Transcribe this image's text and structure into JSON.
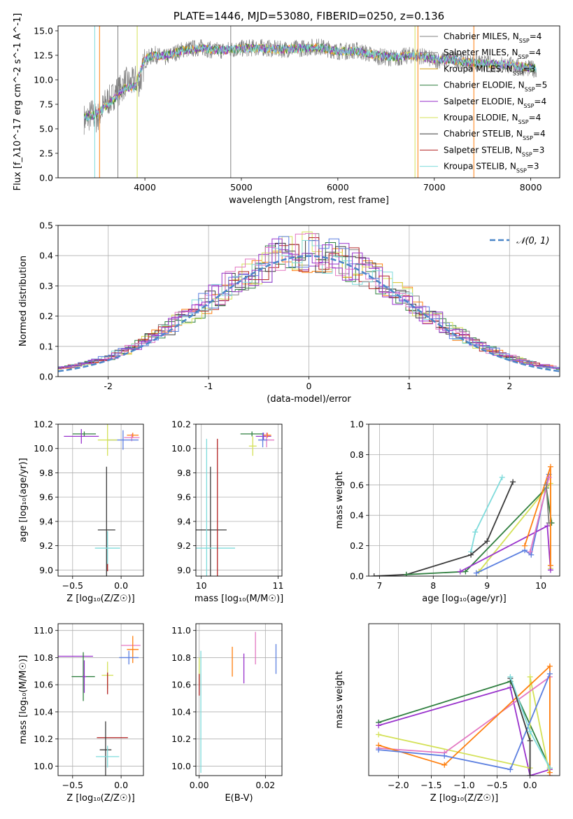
{
  "colors": {
    "Chabrier MILES": "#7f7f7f",
    "Salpeter MILES": "#7f7f7f",
    "Kroupa MILES": "#ff7f0e",
    "Chabrier ELODIE": "#2f7f3f",
    "Salpeter ELODIE": "#9932cc",
    "Kroupa ELODIE": "#d4e157",
    "Chabrier STELIB": "#3a3a3a",
    "Salpeter STELIB": "#b22222",
    "Kroupa STELIB": "#7fdbdb",
    "extra_pink": "#e377c2",
    "extra_blue": "#5b7fe0"
  },
  "chart_data": [
    {
      "id": "spectrum",
      "type": "line",
      "title": "PLATE=1446, MJD=53080, FIBERID=0250, z=0.136",
      "xlabel": "wavelength [Angstrom, rest frame]",
      "ylabel": "Flux [f_λ10^-17 erg cm^-2 s^-1 A^-1]",
      "xlim": [
        3100,
        8300
      ],
      "ylim": [
        0,
        15.5
      ],
      "xticks": [
        4000,
        5000,
        6000,
        7000,
        8000
      ],
      "yticks": [
        0.0,
        2.5,
        5.0,
        7.5,
        10.0,
        12.5,
        15.0
      ],
      "legend_position": "right",
      "legend": [
        {
          "label": "Chabrier MILES, N",
          "sub": "SSP",
          "suffix": "=4"
        },
        {
          "label": "Salpeter MILES, N",
          "sub": "SSP",
          "suffix": "=4"
        },
        {
          "label": "Kroupa MILES, N",
          "sub": "SSP",
          "suffix": "=3"
        },
        {
          "label": "Chabrier ELODIE, N",
          "sub": "SSP",
          "suffix": "=5"
        },
        {
          "label": "Salpeter ELODIE, N",
          "sub": "SSP",
          "suffix": "=4"
        },
        {
          "label": "Kroupa ELODIE, N",
          "sub": "SSP",
          "suffix": "=4"
        },
        {
          "label": "Chabrier STELIB, N",
          "sub": "SSP",
          "suffix": "=4"
        },
        {
          "label": "Salpeter STELIB, N",
          "sub": "SSP",
          "suffix": "=3"
        },
        {
          "label": "Kroupa STELIB, N",
          "sub": "SSP",
          "suffix": "=3"
        }
      ],
      "data_x": [
        3400,
        3450,
        3500,
        3550,
        3600,
        3650,
        3700,
        3750,
        3800,
        3850,
        3900,
        3950,
        4000,
        4100,
        4200,
        4300,
        4400,
        4500,
        4600,
        4700,
        4800,
        4900,
        5000,
        5200,
        5400,
        5600,
        5800,
        6000,
        6200,
        6400,
        6600,
        6800,
        7000,
        7200,
        7400,
        7600,
        7800,
        8000
      ],
      "data_y": [
        6.0,
        6.6,
        6.0,
        6.9,
        7.8,
        8.0,
        8.8,
        9.0,
        9.8,
        9.5,
        10.0,
        9.7,
        12.0,
        12.6,
        12.2,
        12.7,
        13.1,
        13.2,
        13.3,
        13.0,
        13.0,
        13.1,
        13.2,
        13.3,
        13.1,
        13.2,
        13.4,
        12.9,
        13.0,
        12.4,
        12.2,
        12.6,
        12.0,
        12.1,
        11.7,
        11.6,
        11.5,
        11.1
      ],
      "model_x": [
        3400,
        3500,
        3600,
        3700,
        3800,
        3900,
        4000,
        4100,
        4200,
        4400,
        4600,
        4800,
        5000,
        5200,
        5400,
        5600,
        5800,
        6000,
        6200,
        6400,
        6600,
        6800,
        7000,
        7200,
        7400,
        7600,
        7800,
        8000
      ],
      "model_y": [
        6.2,
        6.5,
        7.3,
        8.2,
        9.2,
        9.3,
        12.2,
        12.5,
        12.4,
        13.0,
        13.2,
        13.0,
        13.2,
        13.2,
        13.1,
        13.2,
        13.3,
        12.9,
        12.9,
        12.5,
        12.3,
        12.5,
        12.1,
        12.0,
        11.7,
        11.6,
        11.5,
        11.2
      ]
    },
    {
      "id": "residuals",
      "type": "area",
      "xlabel": "(data-model)/error",
      "ylabel": "Normed distribution",
      "xlim": [
        -2.5,
        2.5
      ],
      "ylim": [
        0,
        0.5
      ],
      "xticks": [
        -2,
        -1,
        0,
        1,
        2
      ],
      "yticks": [
        0.0,
        0.1,
        0.2,
        0.3,
        0.4,
        0.5
      ],
      "legend_position": "top-right",
      "legend": [
        {
          "label": "𝒩(0, 1)"
        }
      ],
      "gaussian": {
        "mu": 0,
        "sigma": 1
      }
    },
    {
      "id": "age_vs_Z",
      "type": "scatter",
      "xlabel": "Z [log₁₀(Z/Z☉)]",
      "ylabel": "age  [log₁₀(age/yr)]",
      "xlim": [
        -0.65,
        0.23
      ],
      "ylim": [
        8.95,
        10.2
      ],
      "xticks": [
        -0.5,
        0.0
      ],
      "yticks": [
        9.0,
        9.2,
        9.4,
        9.6,
        9.8,
        10.0,
        10.2
      ],
      "points": [
        {
          "x": -0.38,
          "y": 10.12,
          "xerr": 0.12,
          "yerr": 0.02,
          "c": "#2f7f3f"
        },
        {
          "x": -0.41,
          "y": 10.1,
          "xerr": 0.18,
          "yerr": 0.06,
          "c": "#9932cc"
        },
        {
          "x": 0.12,
          "y": 10.11,
          "xerr": 0.06,
          "yerr": 0.02,
          "c": "#ff7f0e"
        },
        {
          "x": 0.11,
          "y": 10.09,
          "xerr": 0.08,
          "yerr": 0.03,
          "c": "#e377c2"
        },
        {
          "x": 0.02,
          "y": 10.07,
          "xerr": 0.16,
          "yerr": 0.08,
          "c": "#5b7fe0"
        },
        {
          "x": -0.14,
          "y": 10.07,
          "xerr": 0.1,
          "yerr": 0.13,
          "c": "#d4e157"
        },
        {
          "x": -0.15,
          "y": 9.33,
          "xerr": 0.09,
          "yerr": 0.52,
          "c": "#3a3a3a"
        },
        {
          "x": -0.14,
          "y": 9.18,
          "xerr": 0.13,
          "yerr": 0.14,
          "c": "#7fdbdb"
        },
        {
          "x": -0.14,
          "y": 9.02,
          "xerr": 0.0,
          "yerr": 0.03,
          "c": "#b22222"
        }
      ]
    },
    {
      "id": "age_vs_mass",
      "type": "scatter",
      "xlabel": "mass [log₁₀(M/M☉)]",
      "ylabel": "",
      "xlim": [
        9.93,
        11.05
      ],
      "ylim": [
        8.95,
        10.2
      ],
      "xticks": [
        10,
        11
      ],
      "yticks": [
        9.0,
        9.2,
        9.4,
        9.6,
        9.8,
        10.0,
        10.2
      ],
      "points": [
        {
          "x": 10.66,
          "y": 10.12,
          "xerr": 0.15,
          "yerr": 0.02,
          "c": "#2f7f3f"
        },
        {
          "x": 10.81,
          "y": 10.1,
          "xerr": 0.1,
          "yerr": 0.03,
          "c": "#9932cc"
        },
        {
          "x": 10.86,
          "y": 10.11,
          "xerr": 0.05,
          "yerr": 0.02,
          "c": "#ff7f0e"
        },
        {
          "x": 10.85,
          "y": 10.07,
          "xerr": 0.1,
          "yerr": 0.06,
          "c": "#e377c2"
        },
        {
          "x": 10.8,
          "y": 10.07,
          "xerr": 0.06,
          "yerr": 0.06,
          "c": "#5b7fe0"
        },
        {
          "x": 10.67,
          "y": 10.02,
          "xerr": 0.05,
          "yerr": 0.08,
          "c": "#d4e157"
        },
        {
          "x": 10.12,
          "y": 9.33,
          "xerr": 0.21,
          "yerr": 0.52,
          "c": "#3a3a3a"
        },
        {
          "x": 10.07,
          "y": 9.18,
          "xerr": 0.37,
          "yerr": 0.9,
          "c": "#7fdbdb"
        },
        {
          "x": 10.21,
          "y": 9.18,
          "xerr": 0.0,
          "yerr": 0.9,
          "c": "#b22222"
        }
      ]
    },
    {
      "id": "mw_vs_age",
      "type": "line",
      "xlabel": "age  [log₁₀(age/yr)]",
      "ylabel": "mass weight",
      "xlim": [
        6.8,
        10.35
      ],
      "ylim": [
        0,
        1.0
      ],
      "xticks": [
        7,
        8,
        9,
        10
      ],
      "yticks": [
        0.0,
        0.2,
        0.4,
        0.6,
        0.8,
        1.0
      ],
      "series": [
        {
          "c": "#7fdbdb",
          "x": [
            8.7,
            8.78,
            9.28
          ],
          "y": [
            0.16,
            0.29,
            0.65
          ]
        },
        {
          "c": "#3a3a3a",
          "x": [
            6.9,
            7.5,
            8.7,
            9.0,
            9.48
          ],
          "y": [
            0.0,
            0.01,
            0.14,
            0.23,
            0.62
          ]
        },
        {
          "c": "#2f7f3f",
          "x": [
            7.5,
            8.6,
            10.1,
            10.2
          ],
          "y": [
            0.01,
            0.03,
            0.58,
            0.35
          ]
        },
        {
          "c": "#d4e157",
          "x": [
            8.85,
            10.18,
            10.18
          ],
          "y": [
            0.03,
            0.61,
            0.05
          ]
        },
        {
          "c": "#5b7fe0",
          "x": [
            8.8,
            9.7,
            9.82,
            10.15
          ],
          "y": [
            0.02,
            0.17,
            0.14,
            0.67
          ]
        },
        {
          "c": "#9932cc",
          "x": [
            8.5,
            10.12,
            10.18
          ],
          "y": [
            0.03,
            0.33,
            0.04
          ]
        },
        {
          "c": "#ff7f0e",
          "x": [
            9.7,
            10.18,
            10.18
          ],
          "y": [
            0.2,
            0.72,
            0.07
          ]
        },
        {
          "c": "#e377c2",
          "x": [
            9.8,
            10.15
          ],
          "y": [
            0.16,
            0.65
          ]
        },
        {
          "c": "#7f7f7f",
          "x": [
            10.1,
            10.15
          ],
          "y": [
            0.6,
            0.35
          ]
        }
      ]
    },
    {
      "id": "mass_vs_Z",
      "type": "scatter",
      "xlabel": "Z [log₁₀(Z/Z☉)]",
      "ylabel": "mass [log₁₀(M/M☉)]",
      "xlim": [
        -0.65,
        0.23
      ],
      "ylim": [
        9.93,
        11.05
      ],
      "xticks": [
        -0.5,
        0.0
      ],
      "yticks": [
        10.0,
        10.2,
        10.4,
        10.6,
        10.8,
        11.0
      ],
      "points": [
        {
          "x": -0.47,
          "y": 10.81,
          "xerr": 0.18,
          "yerr": 0.0,
          "c": "#9932cc"
        },
        {
          "x": -0.39,
          "y": 10.66,
          "xerr": 0.12,
          "yerr": 0.18,
          "c": "#2f7f3f"
        },
        {
          "x": -0.38,
          "y": 10.66,
          "xerr": 0.02,
          "yerr": 0.12,
          "c": "#9932cc"
        },
        {
          "x": 0.1,
          "y": 10.89,
          "xerr": 0.1,
          "yerr": 0.0,
          "c": "#e377c2"
        },
        {
          "x": 0.12,
          "y": 10.86,
          "xerr": 0.06,
          "yerr": 0.1,
          "c": "#ff7f0e"
        },
        {
          "x": 0.08,
          "y": 10.8,
          "xerr": 0.1,
          "yerr": 0.05,
          "c": "#5b7fe0"
        },
        {
          "x": -0.14,
          "y": 10.67,
          "xerr": 0.06,
          "yerr": 0.1,
          "c": "#d4e157"
        },
        {
          "x": -0.14,
          "y": 10.61,
          "xerr": 0.0,
          "yerr": 0.08,
          "c": "#b22222"
        },
        {
          "x": -0.09,
          "y": 10.21,
          "xerr": 0.16,
          "yerr": 0.0,
          "c": "#b22222"
        },
        {
          "x": -0.16,
          "y": 10.12,
          "xerr": 0.06,
          "yerr": 0.21,
          "c": "#3a3a3a"
        },
        {
          "x": -0.14,
          "y": 10.07,
          "xerr": 0.12,
          "yerr": 0.08,
          "c": "#7fdbdb"
        }
      ]
    },
    {
      "id": "mass_vs_ebv",
      "type": "scatter",
      "xlabel": "E(B-V)",
      "ylabel": "",
      "xlim": [
        -0.001,
        0.025
      ],
      "ylim": [
        9.93,
        11.05
      ],
      "xticks": [
        0.0,
        0.02
      ],
      "yticks": [
        10.0,
        10.2,
        10.4,
        10.6,
        10.8,
        11.0
      ],
      "points": [
        {
          "x": 0.0005,
          "y": 10.4,
          "xerr": 0.0,
          "yerr": 0.45,
          "c": "#7fdbdb"
        },
        {
          "x": 0.0,
          "y": 10.7,
          "xerr": 0.0,
          "yerr": 0.1,
          "c": "#d4e157"
        },
        {
          "x": 0.0,
          "y": 10.6,
          "xerr": 0.0,
          "yerr": 0.08,
          "c": "#b22222"
        },
        {
          "x": 0.01,
          "y": 10.77,
          "xerr": 0.0,
          "yerr": 0.11,
          "c": "#ff7f0e"
        },
        {
          "x": 0.0135,
          "y": 10.72,
          "xerr": 0.0,
          "yerr": 0.11,
          "c": "#9932cc"
        },
        {
          "x": 0.017,
          "y": 10.87,
          "xerr": 0.0,
          "yerr": 0.12,
          "c": "#e377c2"
        },
        {
          "x": 0.0232,
          "y": 10.79,
          "xerr": 0.0,
          "yerr": 0.11,
          "c": "#5b7fe0"
        }
      ]
    },
    {
      "id": "mw_vs_Z",
      "type": "line",
      "xlabel": "Z [log₁₀(Z/Z☉)]",
      "ylabel": "mass weight",
      "xlim": [
        -2.45,
        0.45
      ],
      "ylim": [
        0,
        1.0
      ],
      "xticks": [
        -2.0,
        -1.5,
        -1.0,
        -0.5,
        0.0
      ],
      "series": [
        {
          "c": "#2f7f3f",
          "x": [
            -2.3,
            -0.3,
            0.3
          ],
          "y": [
            0.35,
            0.62,
            0.05
          ]
        },
        {
          "c": "#9932cc",
          "x": [
            -2.3,
            -0.3,
            0.0,
            0.3
          ],
          "y": [
            0.33,
            0.58,
            0.0,
            0.04
          ]
        },
        {
          "c": "#d4e157",
          "x": [
            -2.3,
            0.0,
            0.0,
            0.3
          ],
          "y": [
            0.27,
            0.05,
            0.65,
            0.0
          ]
        },
        {
          "c": "#e377c2",
          "x": [
            -2.3,
            -1.3,
            0.3,
            0.3
          ],
          "y": [
            0.18,
            0.15,
            0.65,
            0.0
          ]
        },
        {
          "c": "#ff7f0e",
          "x": [
            -2.3,
            -1.3,
            0.3,
            0.3
          ],
          "y": [
            0.2,
            0.07,
            0.72,
            0.02
          ]
        },
        {
          "c": "#5b7fe0",
          "x": [
            -2.3,
            -1.3,
            -0.3,
            0.3
          ],
          "y": [
            0.17,
            0.13,
            0.04,
            0.67
          ]
        },
        {
          "c": "#3a3a3a",
          "x": [
            -0.3,
            0.0,
            0.0
          ],
          "y": [
            0.64,
            0.23,
            0.0
          ]
        },
        {
          "c": "#7fdbdb",
          "x": [
            -0.3,
            0.0,
            0.3
          ],
          "y": [
            0.65,
            0.29,
            0.05
          ]
        }
      ]
    }
  ]
}
